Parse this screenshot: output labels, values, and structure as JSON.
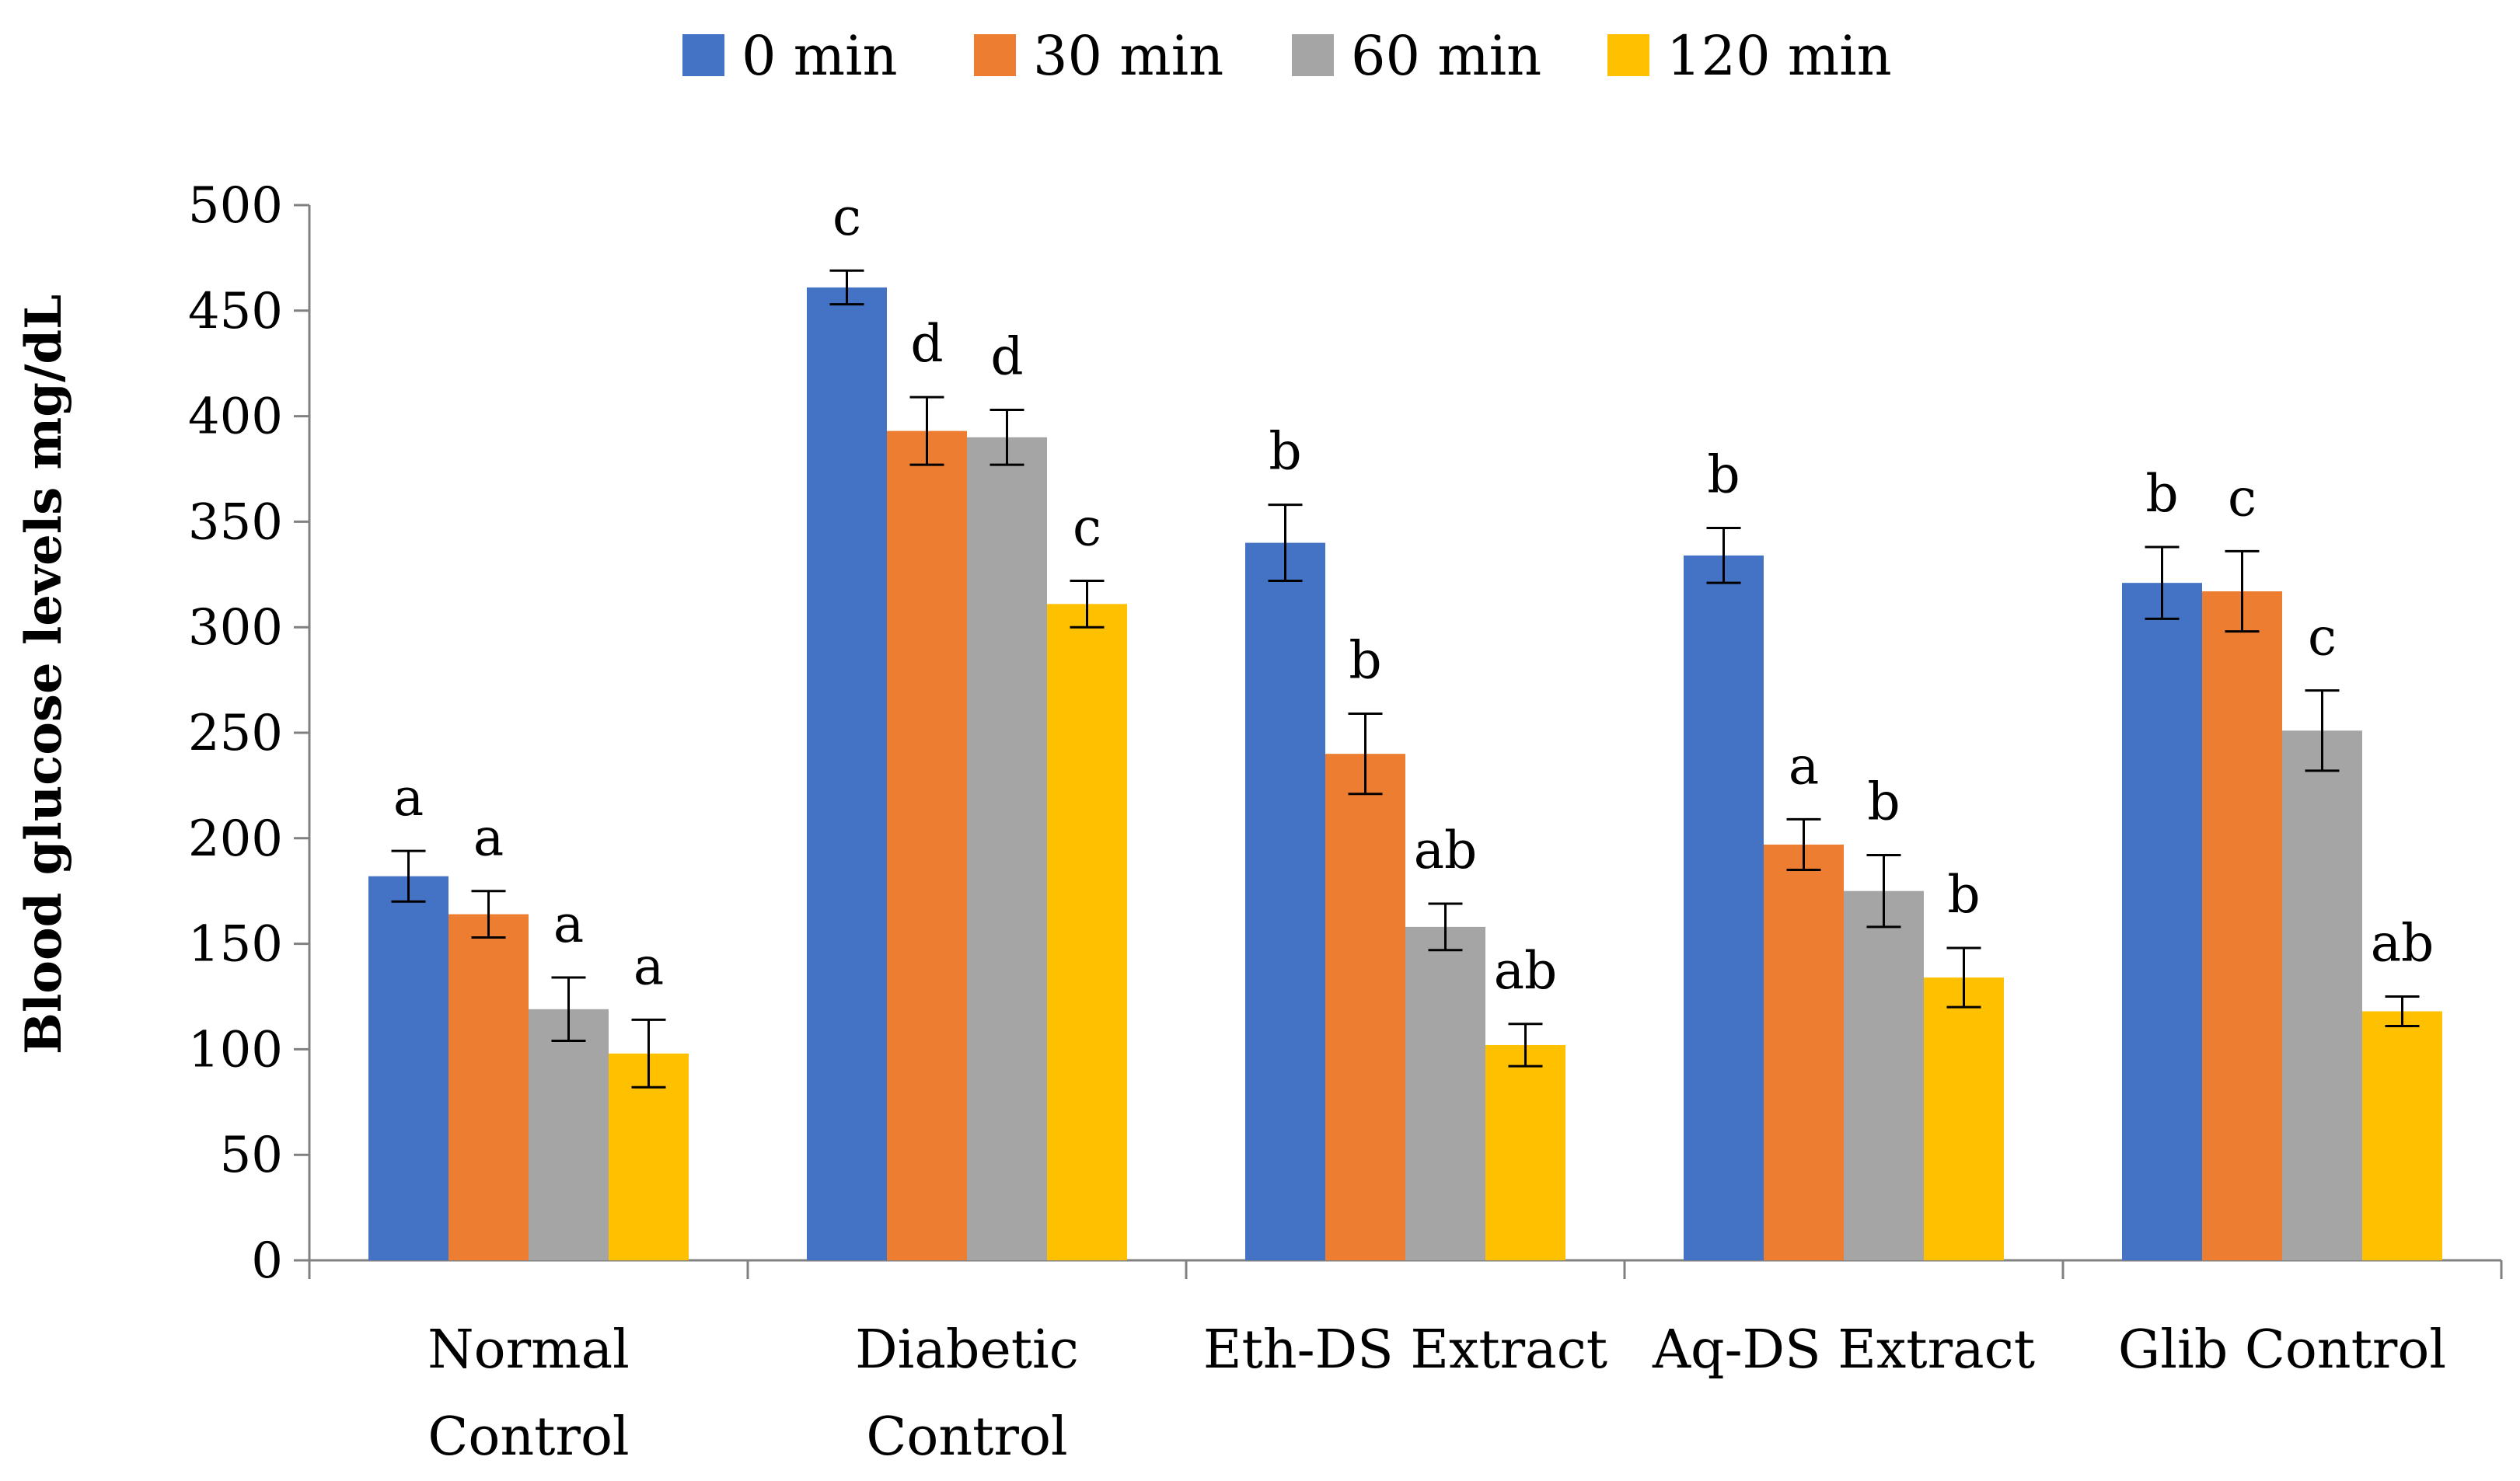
{
  "chart_data": {
    "type": "bar",
    "title": "",
    "xlabel": "",
    "ylabel": "Blood glucose levels mg/dL",
    "ylim": [
      0,
      500
    ],
    "ytick_step": 50,
    "grid": false,
    "legend_position": "top-center",
    "categories": [
      [
        "Normal",
        "Control"
      ],
      [
        "Diabetic",
        "Control"
      ],
      [
        "Eth-DS Extract"
      ],
      [
        "Aq-DS Extract"
      ],
      [
        "Glib Control"
      ]
    ],
    "series": [
      {
        "name": "0 min",
        "color": "#4472C4",
        "values": [
          182,
          461,
          340,
          334,
          321
        ],
        "errors": [
          12,
          8,
          18,
          13,
          17
        ],
        "labels": [
          "a",
          "c",
          "b",
          "b",
          "b"
        ]
      },
      {
        "name": "30 min",
        "color": "#ED7D31",
        "values": [
          164,
          393,
          240,
          197,
          317
        ],
        "errors": [
          11,
          16,
          19,
          12,
          19
        ],
        "labels": [
          "a",
          "d",
          "b",
          "a",
          "c"
        ]
      },
      {
        "name": "60 min",
        "color": "#A5A5A5",
        "values": [
          119,
          390,
          158,
          175,
          251
        ],
        "errors": [
          15,
          13,
          11,
          17,
          19
        ],
        "labels": [
          "a",
          "d",
          "ab",
          "b",
          "c"
        ]
      },
      {
        "name": "120 min",
        "color": "#FFC000",
        "values": [
          98,
          311,
          102,
          134,
          118
        ],
        "errors": [
          16,
          11,
          10,
          14,
          7
        ],
        "labels": [
          "a",
          "c",
          "ab",
          "b",
          "ab"
        ]
      }
    ]
  }
}
